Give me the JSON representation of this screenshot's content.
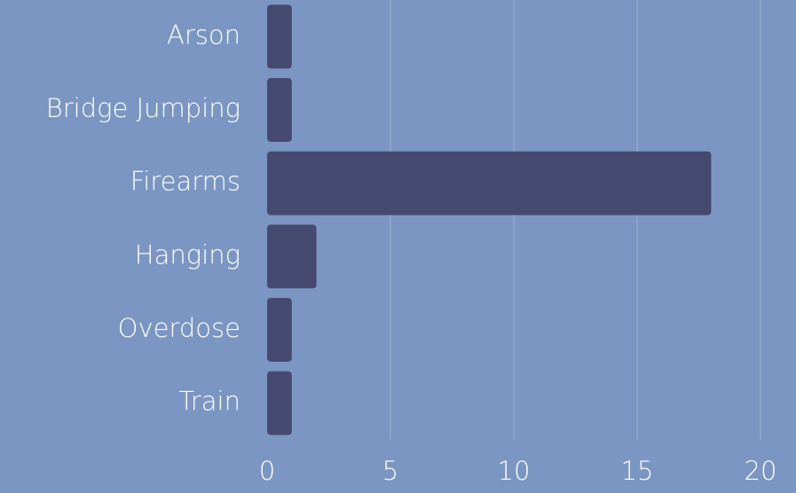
{
  "chart_data": {
    "type": "barh",
    "categories": [
      "Arson",
      "Bridge Jumping",
      "Firearms",
      "Hanging",
      "Overdose",
      "Train"
    ],
    "values": [
      1,
      1,
      18,
      2,
      1,
      1
    ],
    "color": "#464a70",
    "xlim": [
      0,
      20
    ],
    "xticks": [
      0,
      5,
      10,
      15,
      20
    ],
    "grid": true
  }
}
